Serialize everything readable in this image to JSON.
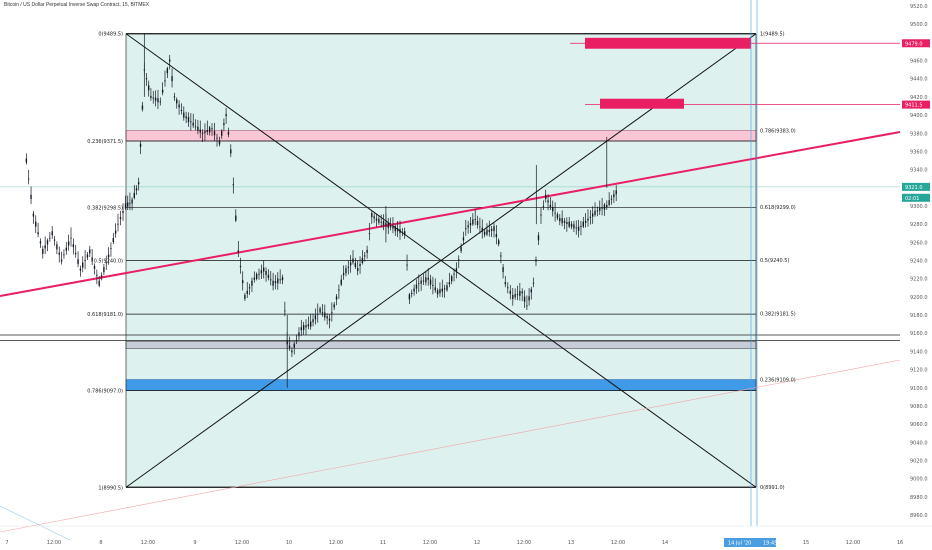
{
  "header": {
    "title": "Bitcoin / US Dollar Perpetual Inverse Swap Contract, 15, BITMEX"
  },
  "chart_data": {
    "type": "candlestick",
    "title": "Bitcoin / US Dollar Perpetual Inverse Swap Contract, 15, BITMEX",
    "ylim": [
      8950,
      9530
    ],
    "y_ticks": [
      8960.0,
      8980.0,
      9000.0,
      9020.0,
      9040.0,
      9060.0,
      9080.0,
      9100.0,
      9120.0,
      9140.0,
      9160.0,
      9180.0,
      9200.0,
      9220.0,
      9240.0,
      9260.0,
      9280.0,
      9300.0,
      9320.0,
      9340.0,
      9360.0,
      9380.0,
      9400.0,
      9420.0,
      9440.0,
      9460.0,
      9480.0,
      9500.0,
      9520.0
    ],
    "x_ticks": [
      {
        "label": "7",
        "pos": 0
      },
      {
        "label": "12:00",
        "pos": 0.5
      },
      {
        "label": "8",
        "pos": 1
      },
      {
        "label": "12:00",
        "pos": 1.5
      },
      {
        "label": "9",
        "pos": 2
      },
      {
        "label": "12:00",
        "pos": 2.5
      },
      {
        "label": "10",
        "pos": 3
      },
      {
        "label": "12:00",
        "pos": 3.5
      },
      {
        "label": "11",
        "pos": 4
      },
      {
        "label": "12:00",
        "pos": 4.5
      },
      {
        "label": "12",
        "pos": 5
      },
      {
        "label": "12:00",
        "pos": 5.5
      },
      {
        "label": "13",
        "pos": 6
      },
      {
        "label": "12:00",
        "pos": 6.5
      },
      {
        "label": "14",
        "pos": 7
      },
      {
        "label": "12:00",
        "pos": 8
      },
      {
        "label": "15",
        "pos": 8.5
      },
      {
        "label": "12:00",
        "pos": 9
      },
      {
        "label": "16",
        "pos": 9.5
      }
    ],
    "x_range": [
      -0.1,
      10.0
    ],
    "series": [
      {
        "values": [
          [
            0,
            9370
          ],
          [
            0.1,
            9290
          ],
          [
            0.2,
            9250
          ],
          [
            0.3,
            9270
          ],
          [
            0.4,
            9240
          ],
          [
            0.5,
            9265
          ],
          [
            0.6,
            9230
          ],
          [
            0.7,
            9250
          ],
          [
            0.8,
            9215
          ],
          [
            0.9,
            9245
          ],
          [
            1.0,
            9280
          ],
          [
            1.08,
            9300
          ],
          [
            1.15,
            9305
          ],
          [
            1.22,
            9325
          ],
          [
            1.28,
            9450
          ],
          [
            1.35,
            9420
          ],
          [
            1.45,
            9415
          ],
          [
            1.55,
            9460
          ],
          [
            1.6,
            9420
          ],
          [
            1.7,
            9400
          ],
          [
            1.8,
            9390
          ],
          [
            1.9,
            9380
          ],
          [
            2.0,
            9385
          ],
          [
            2.08,
            9370
          ],
          [
            2.15,
            9400
          ],
          [
            2.2,
            9360
          ],
          [
            2.28,
            9250
          ],
          [
            2.35,
            9200
          ],
          [
            2.45,
            9220
          ],
          [
            2.55,
            9230
          ],
          [
            2.65,
            9215
          ],
          [
            2.75,
            9220
          ],
          [
            2.8,
            9150
          ],
          [
            2.85,
            9140
          ],
          [
            2.95,
            9165
          ],
          [
            3.05,
            9170
          ],
          [
            3.15,
            9185
          ],
          [
            3.25,
            9175
          ],
          [
            3.3,
            9190
          ],
          [
            3.4,
            9225
          ],
          [
            3.5,
            9240
          ],
          [
            3.55,
            9230
          ],
          [
            3.65,
            9250
          ],
          [
            3.7,
            9290
          ],
          [
            3.75,
            9285
          ],
          [
            3.85,
            9280
          ],
          [
            3.95,
            9275
          ],
          [
            4.05,
            9270
          ],
          [
            4.1,
            9200
          ],
          [
            4.2,
            9215
          ],
          [
            4.3,
            9220
          ],
          [
            4.4,
            9205
          ],
          [
            4.5,
            9210
          ],
          [
            4.6,
            9230
          ],
          [
            4.7,
            9275
          ],
          [
            4.8,
            9285
          ],
          [
            4.9,
            9270
          ],
          [
            5.0,
            9275
          ],
          [
            5.05,
            9260
          ],
          [
            5.12,
            9215
          ],
          [
            5.2,
            9200
          ],
          [
            5.3,
            9205
          ],
          [
            5.35,
            9190
          ],
          [
            5.42,
            9215
          ],
          [
            5.5,
            9290
          ],
          [
            5.55,
            9310
          ],
          [
            5.6,
            9300
          ],
          [
            5.7,
            9285
          ],
          [
            5.8,
            9280
          ],
          [
            5.9,
            9275
          ],
          [
            6.0,
            9285
          ],
          [
            6.1,
            9295
          ],
          [
            6.2,
            9300
          ],
          [
            6.3,
            9315
          ]
        ]
      }
    ],
    "fib_levels": {
      "left": [
        {
          "label": "0(9489.5)",
          "price": 9489.5
        },
        {
          "label": "0.236(9371.5)",
          "price": 9371.5
        },
        {
          "label": "0.382(9298.5)",
          "price": 9298.5
        },
        {
          "label": "0.5(9240.0)",
          "price": 9240.0
        },
        {
          "label": "0.618(9181.0)",
          "price": 9181.0
        },
        {
          "label": "0.786(9097.0)",
          "price": 9097.0
        },
        {
          "label": "1(8990.5)",
          "price": 8990.5
        }
      ],
      "right": [
        {
          "label": "1(9489.5)",
          "price": 9489.5
        },
        {
          "label": "0.786(9383.0)",
          "price": 9383.0
        },
        {
          "label": "0.618(9299.0)",
          "price": 9299.0
        },
        {
          "label": "0.5(9240.5)",
          "price": 9240.5
        },
        {
          "label": "0.382(9181.5)",
          "price": 9181.5
        },
        {
          "label": "0.236(9109.0)",
          "price": 9109.0
        },
        {
          "label": "0(8991.0)",
          "price": 8991.0
        }
      ]
    },
    "price_labels": [
      {
        "text": "9479.0",
        "price": 9479.0,
        "color": "#e91e63"
      },
      {
        "text": "9411.5",
        "price": 9411.5,
        "color": "#e91e63"
      },
      {
        "text": "9321.0",
        "price": 9321.0,
        "color": "#26a69a"
      },
      {
        "text": "02:01",
        "price": 9309.0,
        "color": "#26a69a"
      }
    ],
    "date_labels": [
      "14 Jul '20",
      "19:45"
    ],
    "colors": {
      "fib_fill": "#ddf1ee",
      "pink": "#e91e63",
      "pink_fill": "#f8c6d4",
      "blue_fill": "#3f9be8",
      "cursor_blue": "#4a9ee0",
      "axis_text": "#555555",
      "candle": "#131722"
    }
  }
}
